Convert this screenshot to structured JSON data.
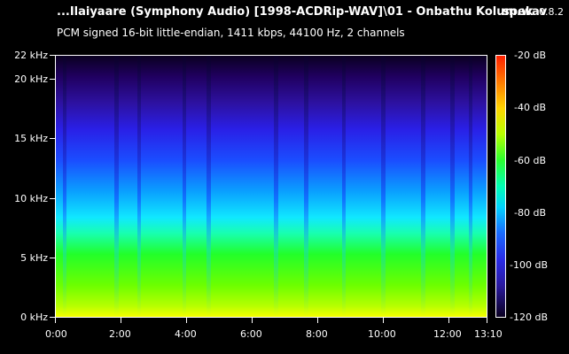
{
  "header": {
    "file_title": "...Ilaiyaare (Symphony Audio) [1998-ACDRip-WAV]\\01 - Onbathu Kolum.wav",
    "app_name": "spek",
    "app_version": "0.8.2",
    "info": "PCM signed 16-bit little-endian, 1411 kbps, 44100 Hz, 2 channels"
  },
  "y_axis": {
    "labels": [
      "22 kHz",
      "20 kHz",
      "15 kHz",
      "10 kHz",
      "5 kHz",
      "0 kHz"
    ]
  },
  "x_axis": {
    "labels": [
      "0:00",
      "2:00",
      "4:00",
      "6:00",
      "8:00",
      "10:00",
      "12:00",
      "13:10"
    ]
  },
  "color_scale": {
    "labels": [
      "-20 dB",
      "-40 dB",
      "-60 dB",
      "-80 dB",
      "-100 dB",
      "-120 dB"
    ]
  }
}
